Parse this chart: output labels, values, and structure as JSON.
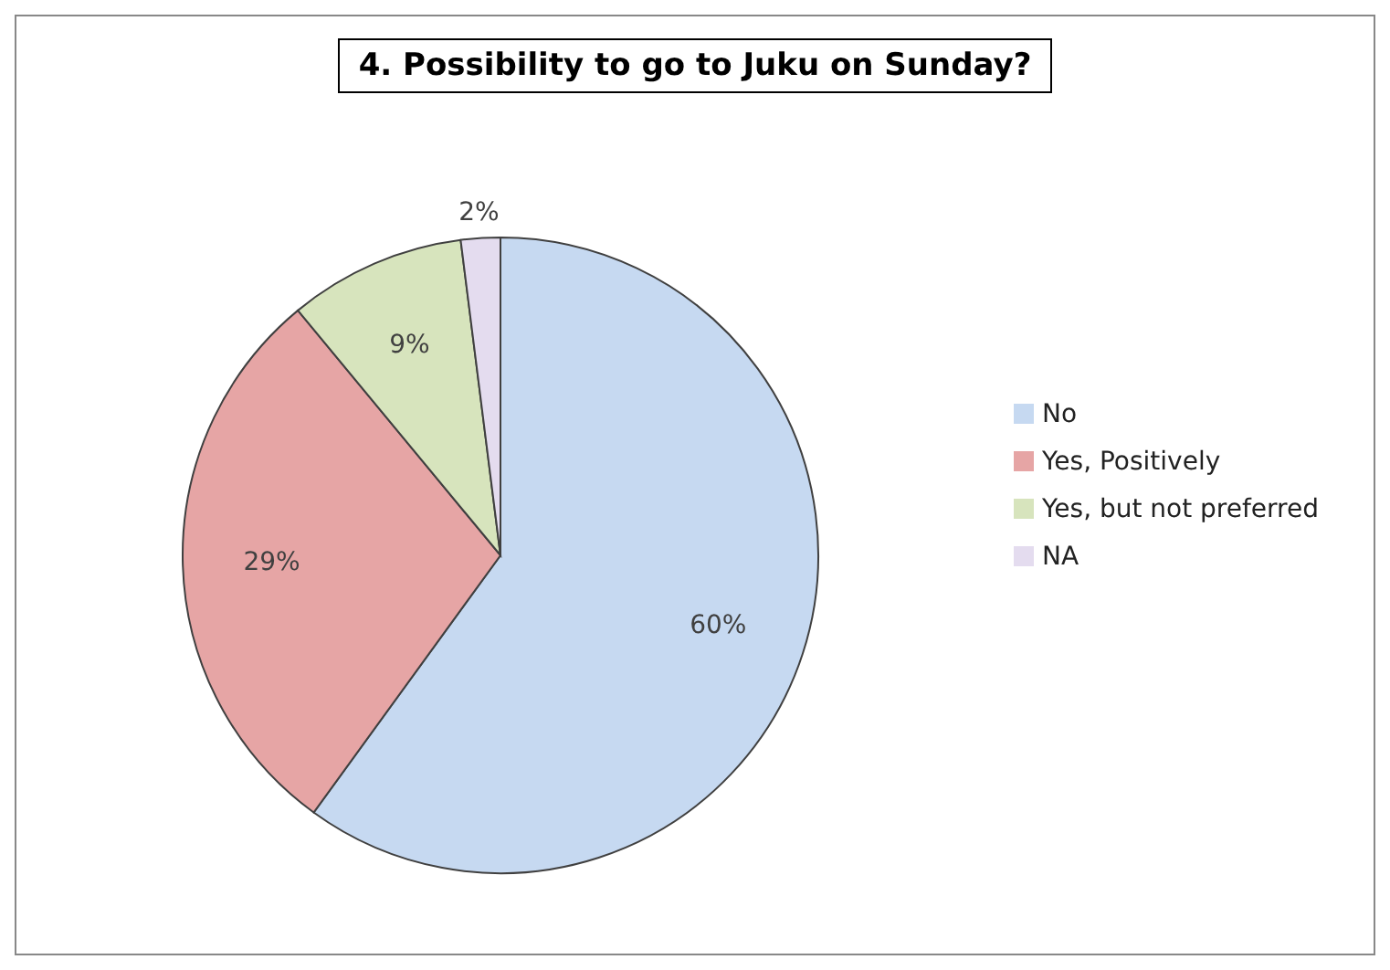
{
  "chart_data": {
    "type": "pie",
    "title": "4. Possibility to go to Juku on Sunday?",
    "categories": [
      "No",
      "Yes, Positively",
      "Yes, but not preferred",
      "NA"
    ],
    "values": [
      60,
      29,
      9,
      2
    ],
    "colors": [
      "#c6d9f1",
      "#e6a5a5",
      "#d7e4bd",
      "#e4dcef"
    ],
    "value_labels": [
      "60%",
      "29%",
      "9%",
      "2%"
    ],
    "legend": "right"
  }
}
